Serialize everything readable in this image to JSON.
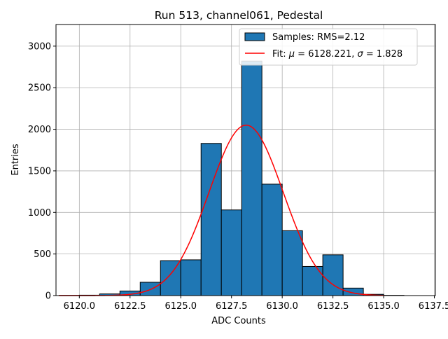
{
  "chart_data": {
    "type": "histogram",
    "title": "Run 513, channel061, Pedestal",
    "xlabel": "ADC Counts",
    "ylabel": "Entries",
    "xlim": [
      6118.85,
      6137.55
    ],
    "ylim": [
      0,
      3260
    ],
    "grid": true,
    "legend_position": "top-right",
    "xticks": [
      6120.0,
      6122.5,
      6125.0,
      6127.5,
      6130.0,
      6132.5,
      6135.0,
      6137.5
    ],
    "xtick_labels": [
      "6120.0",
      "6122.5",
      "6125.0",
      "6127.5",
      "6130.0",
      "6132.5",
      "6135.0",
      "6137.5"
    ],
    "yticks": [
      0,
      500,
      1000,
      1500,
      2000,
      2500,
      3000
    ],
    "ytick_labels": [
      "0",
      "500",
      "1000",
      "1500",
      "2000",
      "2500",
      "3000"
    ],
    "bins": [
      {
        "x0": 6119.0,
        "x1": 6120.0,
        "count": 2
      },
      {
        "x0": 6120.0,
        "x1": 6121.0,
        "count": 5
      },
      {
        "x0": 6121.0,
        "x1": 6122.0,
        "count": 20
      },
      {
        "x0": 6122.0,
        "x1": 6123.0,
        "count": 55
      },
      {
        "x0": 6123.0,
        "x1": 6124.0,
        "count": 160
      },
      {
        "x0": 6124.0,
        "x1": 6125.0,
        "count": 420
      },
      {
        "x0": 6125.0,
        "x1": 6126.0,
        "count": 430
      },
      {
        "x0": 6126.0,
        "x1": 6127.0,
        "count": 1830
      },
      {
        "x0": 6127.0,
        "x1": 6128.0,
        "count": 1030
      },
      {
        "x0": 6128.0,
        "x1": 6129.0,
        "count": 2820
      },
      {
        "x0": 6129.0,
        "x1": 6130.0,
        "count": 1340
      },
      {
        "x0": 6130.0,
        "x1": 6131.0,
        "count": 780
      },
      {
        "x0": 6131.0,
        "x1": 6132.0,
        "count": 350
      },
      {
        "x0": 6132.0,
        "x1": 6133.0,
        "count": 490
      },
      {
        "x0": 6133.0,
        "x1": 6134.0,
        "count": 90
      },
      {
        "x0": 6134.0,
        "x1": 6135.0,
        "count": 15
      },
      {
        "x0": 6135.0,
        "x1": 6136.0,
        "count": 3
      }
    ],
    "series": [
      {
        "name": "Samples: RMS=2.12",
        "kind": "histogram",
        "color": "#1f77b4",
        "edgecolor": "#000000"
      },
      {
        "name": "Fit",
        "kind": "line",
        "color": "#ff0000",
        "function": "gaussian",
        "mu": 6128.221,
        "sigma": 1.828,
        "amplitude": 2050,
        "x_range": [
          6119.0,
          6135.0
        ]
      }
    ],
    "legend": {
      "hist_prefix": "Samples: RMS=2.12",
      "fit_prefix": "Fit: ",
      "mu_symbol": "μ",
      "mu_text": " = 6128.221, ",
      "sigma_symbol": "σ",
      "sigma_text": " = 1.828"
    }
  }
}
